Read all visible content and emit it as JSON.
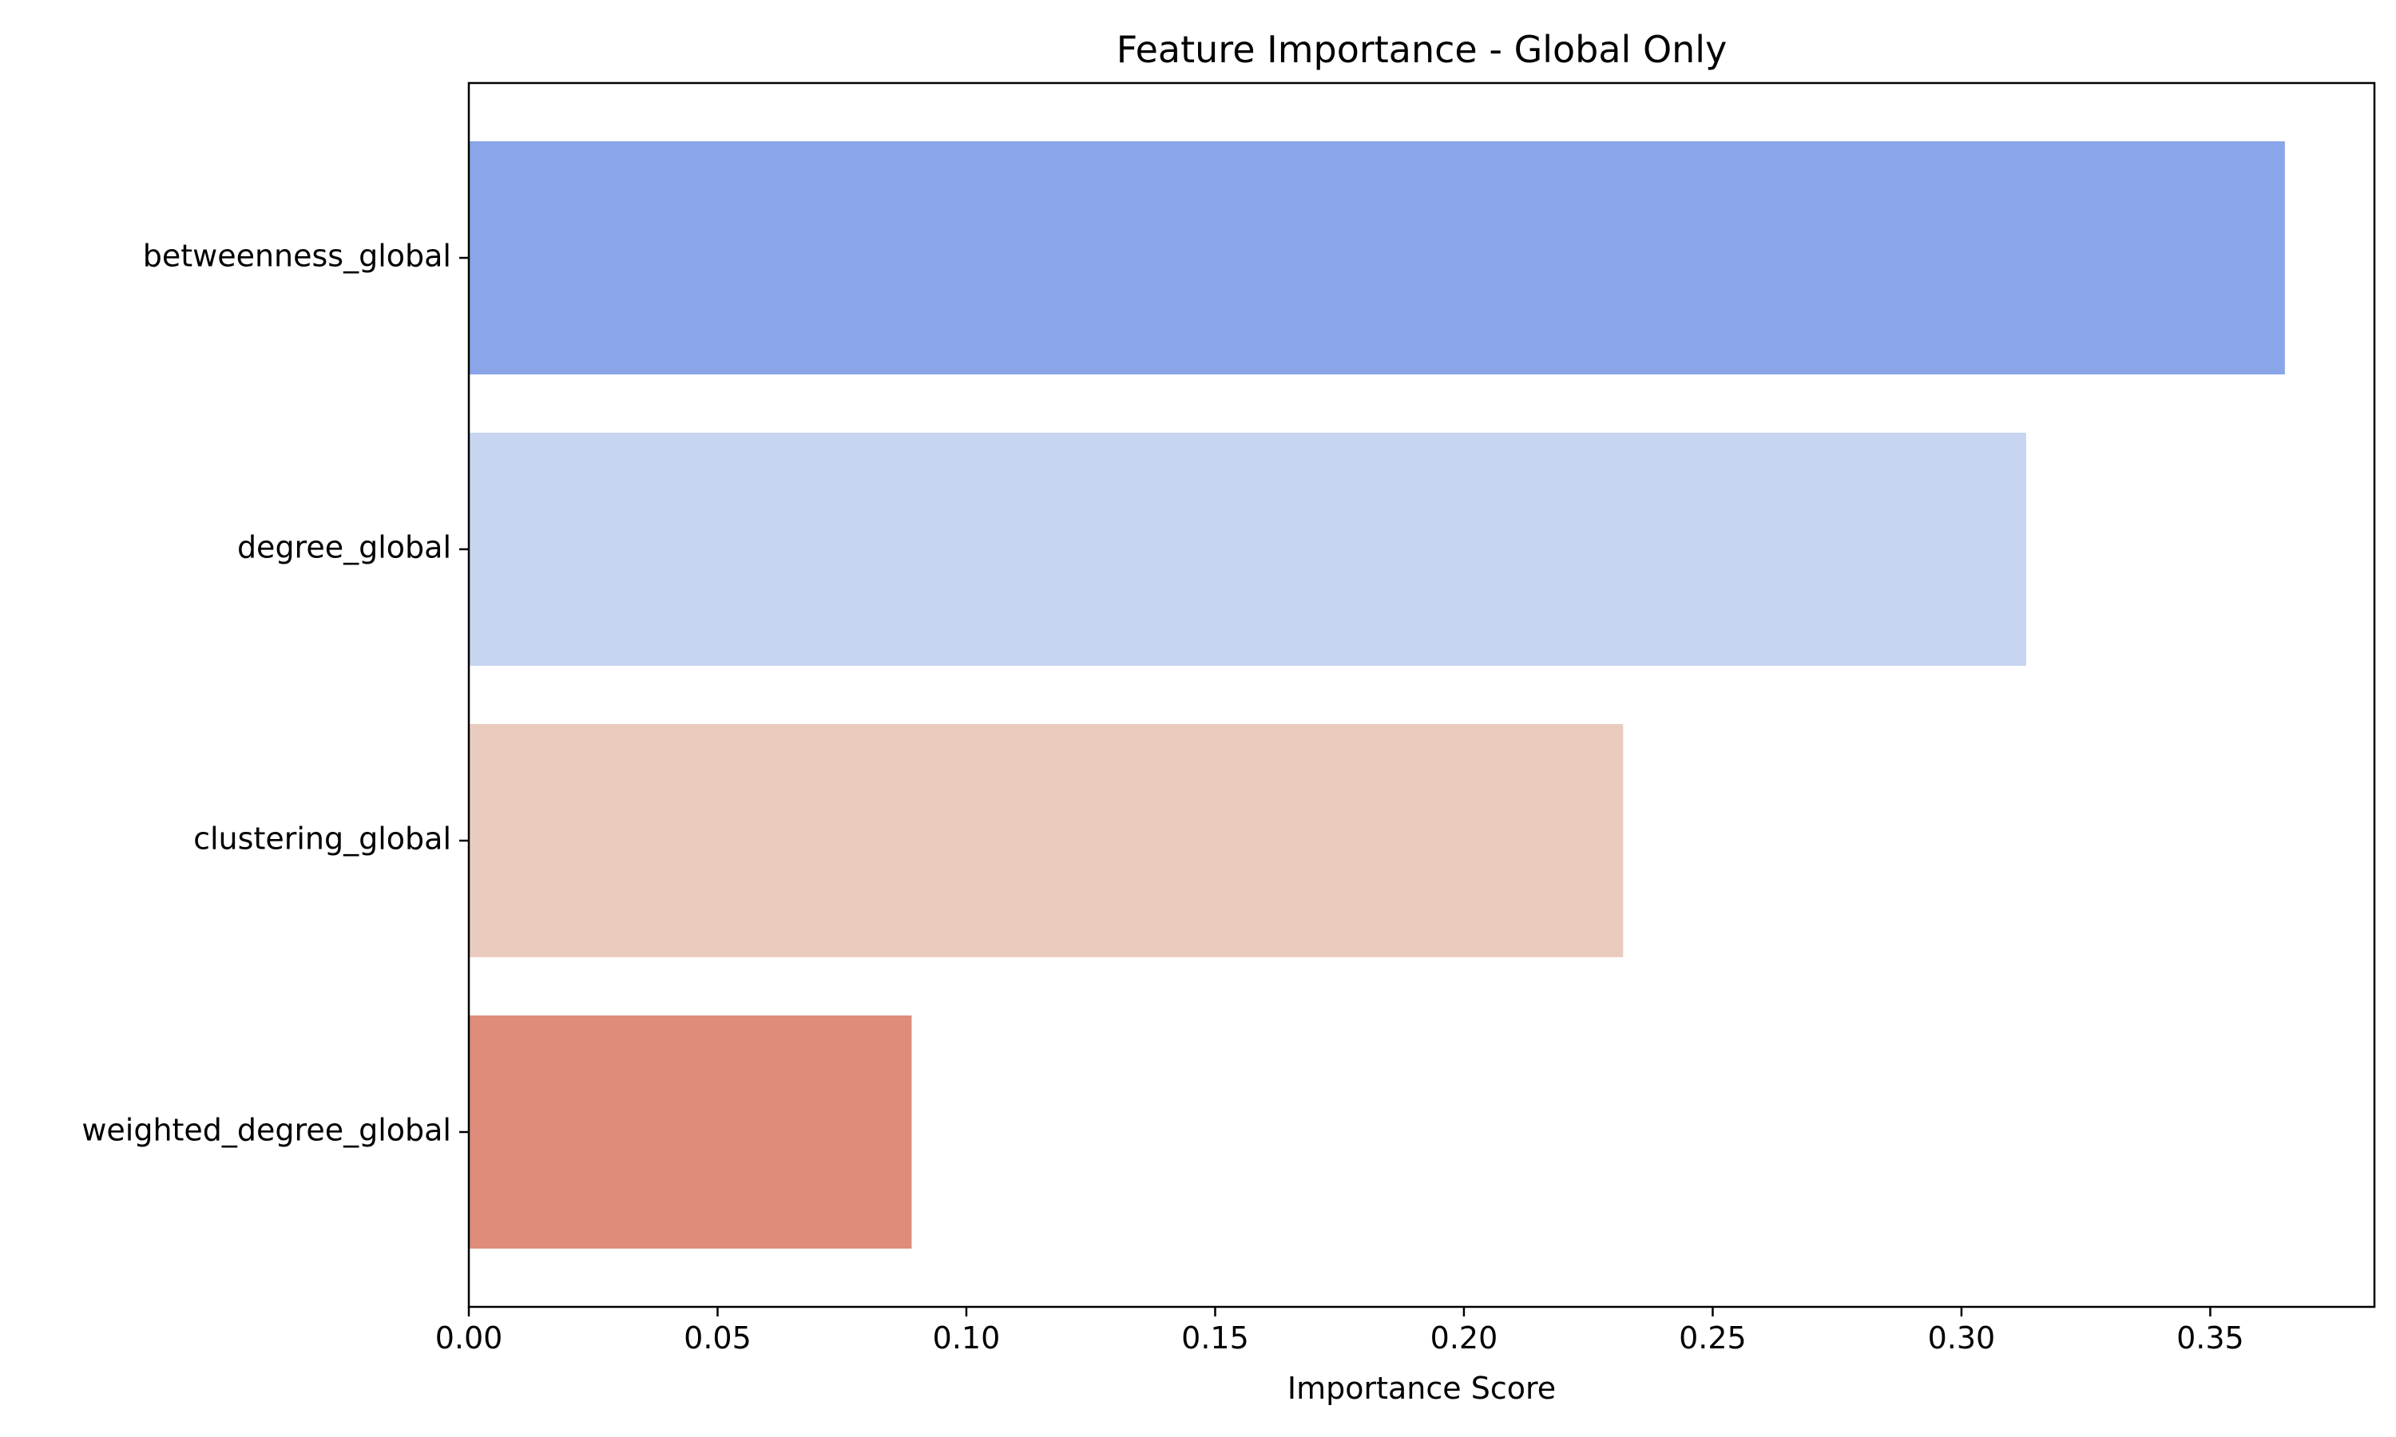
{
  "chart_data": {
    "type": "bar",
    "orientation": "horizontal",
    "title": "Feature Importance - Global Only",
    "xlabel": "Importance Score",
    "ylabel": "",
    "categories": [
      "betweenness_global",
      "degree_global",
      "clustering_global",
      "weighted_degree_global"
    ],
    "values": [
      0.365,
      0.313,
      0.232,
      0.089
    ],
    "colors": [
      "#8aa5e8",
      "#c7d5f0",
      "#eaccbf",
      "#dd8d79"
    ],
    "xlim": [
      0,
      0.383
    ],
    "xticks": [
      0.0,
      0.05,
      0.1,
      0.15,
      0.2,
      0.25,
      0.3,
      0.35
    ],
    "xtick_labels": [
      "0.00",
      "0.05",
      "0.10",
      "0.15",
      "0.20",
      "0.25",
      "0.30",
      "0.35"
    ],
    "grid": false,
    "legend": "none"
  }
}
